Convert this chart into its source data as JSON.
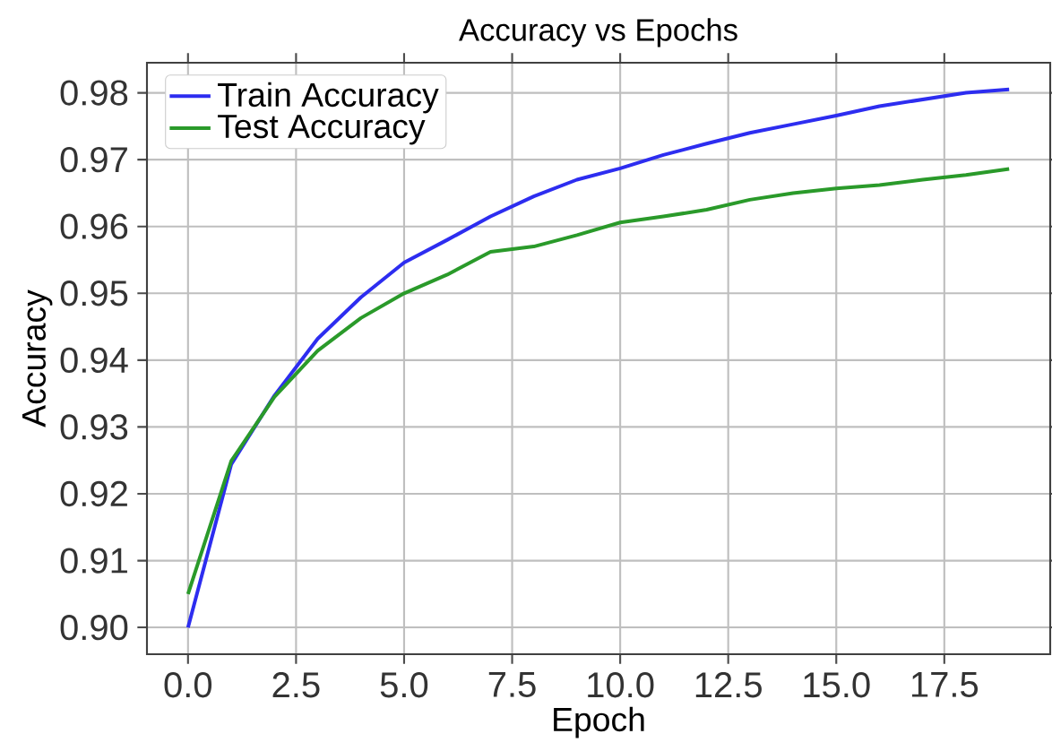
{
  "chart_data": {
    "type": "line",
    "title": "Accuracy vs Epochs",
    "xlabel": "Epoch",
    "ylabel": "Accuracy",
    "x": [
      0,
      1,
      2,
      3,
      4,
      5,
      6,
      7,
      8,
      9,
      10,
      11,
      12,
      13,
      14,
      15,
      16,
      17,
      18,
      19
    ],
    "series": [
      {
        "name": "Train Accuracy",
        "color": "#2d2df0",
        "values": [
          0.9,
          0.9244,
          0.9347,
          0.9432,
          0.9494,
          0.9546,
          0.958,
          0.9615,
          0.9645,
          0.967,
          0.9687,
          0.9707,
          0.9724,
          0.974,
          0.9753,
          0.9766,
          0.978,
          0.979,
          0.98,
          0.9805
        ]
      },
      {
        "name": "Test Accuracy",
        "color": "#2a9a2a",
        "values": [
          0.905,
          0.9249,
          0.9345,
          0.9414,
          0.9463,
          0.95,
          0.9528,
          0.9562,
          0.957,
          0.9587,
          0.9606,
          0.9615,
          0.9625,
          0.964,
          0.965,
          0.9657,
          0.9662,
          0.967,
          0.9677,
          0.9686
        ]
      }
    ],
    "xlim": [
      -0.95,
      19.95
    ],
    "ylim": [
      0.896,
      0.9845
    ],
    "xticks": [
      {
        "value": 0,
        "label": "0.0"
      },
      {
        "value": 2.5,
        "label": "2.5"
      },
      {
        "value": 5,
        "label": "5.0"
      },
      {
        "value": 7.5,
        "label": "7.5"
      },
      {
        "value": 10,
        "label": "10.0"
      },
      {
        "value": 12.5,
        "label": "12.5"
      },
      {
        "value": 15,
        "label": "15.0"
      },
      {
        "value": 17.5,
        "label": "17.5"
      }
    ],
    "yticks": [
      {
        "value": 0.9,
        "label": "0.90"
      },
      {
        "value": 0.91,
        "label": "0.91"
      },
      {
        "value": 0.92,
        "label": "0.92"
      },
      {
        "value": 0.93,
        "label": "0.93"
      },
      {
        "value": 0.94,
        "label": "0.94"
      },
      {
        "value": 0.95,
        "label": "0.95"
      },
      {
        "value": 0.96,
        "label": "0.96"
      },
      {
        "value": 0.97,
        "label": "0.97"
      },
      {
        "value": 0.98,
        "label": "0.98"
      }
    ],
    "grid": true,
    "legend": "top left",
    "marker": "none",
    "line_style": "solid"
  }
}
